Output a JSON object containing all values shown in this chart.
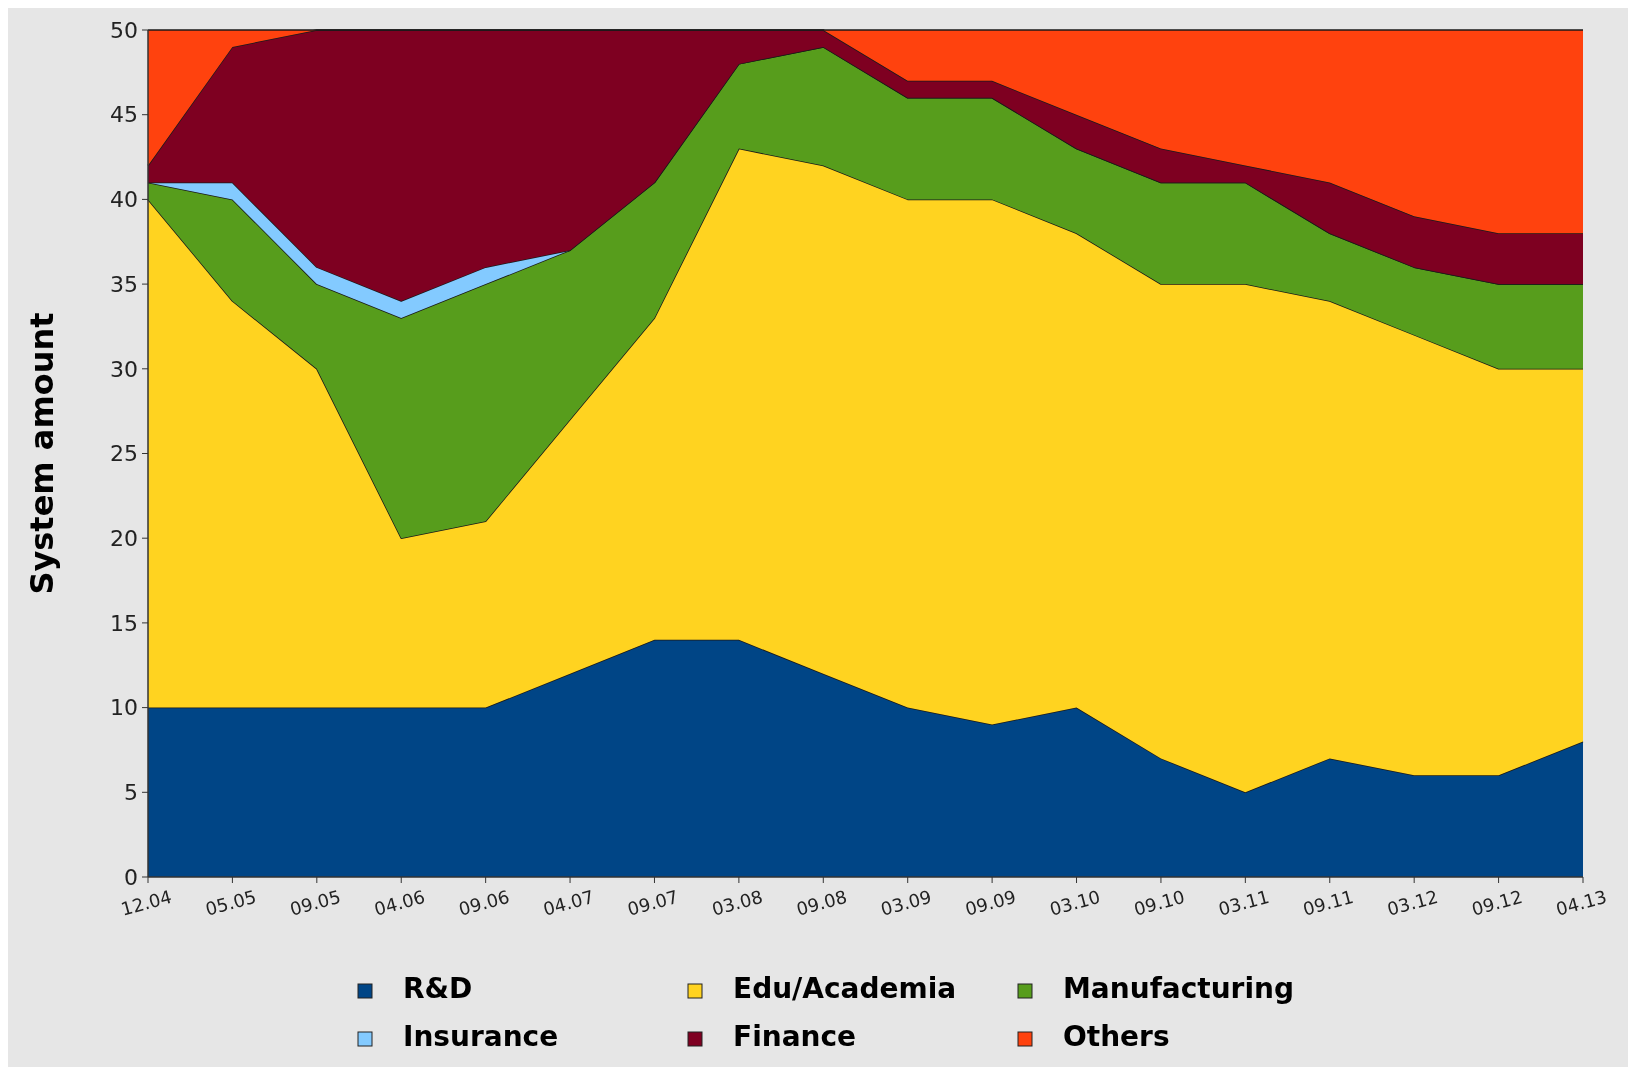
{
  "chart_data": {
    "type": "area",
    "stacked": true,
    "ylabel": "System amount",
    "categories": [
      "12.04",
      "05.05",
      "09.05",
      "04.06",
      "09.06",
      "04.07",
      "09.07",
      "03.08",
      "09.08",
      "03.09",
      "09.09",
      "03.10",
      "09.10",
      "03.11",
      "09.11",
      "03.12",
      "09.12",
      "04.13"
    ],
    "ylim": [
      0,
      50
    ],
    "yticks": [
      0,
      5,
      10,
      15,
      20,
      25,
      30,
      35,
      40,
      45,
      50
    ],
    "grid": false,
    "legend": "bottom",
    "series": [
      {
        "name": "R&D",
        "color": "#004586",
        "values": [
          10,
          10,
          10,
          10,
          10,
          12,
          14,
          14,
          12,
          10,
          9,
          10,
          7,
          5,
          7,
          6,
          6,
          8
        ]
      },
      {
        "name": "Edu/Academia",
        "color": "#ffd320",
        "values": [
          30,
          24,
          20,
          10,
          11,
          15,
          19,
          29,
          30,
          30,
          31,
          28,
          28,
          30,
          27,
          26,
          24,
          22
        ]
      },
      {
        "name": "Manufacturing",
        "color": "#579d1c",
        "values": [
          1,
          6,
          5,
          13,
          14,
          10,
          8,
          5,
          7,
          6,
          6,
          5,
          6,
          6,
          4,
          4,
          5,
          5
        ]
      },
      {
        "name": "Insurance",
        "color": "#83caff",
        "values": [
          0,
          1,
          1,
          1,
          1,
          0,
          0,
          0,
          0,
          0,
          0,
          0,
          0,
          0,
          0,
          0,
          0,
          0
        ]
      },
      {
        "name": "Finance",
        "color": "#7e0021",
        "values": [
          1,
          8,
          14,
          16,
          14,
          13,
          9,
          2,
          1,
          1,
          1,
          2,
          2,
          1,
          3,
          3,
          3,
          3
        ]
      },
      {
        "name": "Others",
        "color": "#ff420e",
        "values": [
          8,
          1,
          0,
          0,
          0,
          0,
          0,
          0,
          0,
          3,
          3,
          5,
          7,
          8,
          9,
          11,
          12,
          12
        ]
      }
    ]
  }
}
